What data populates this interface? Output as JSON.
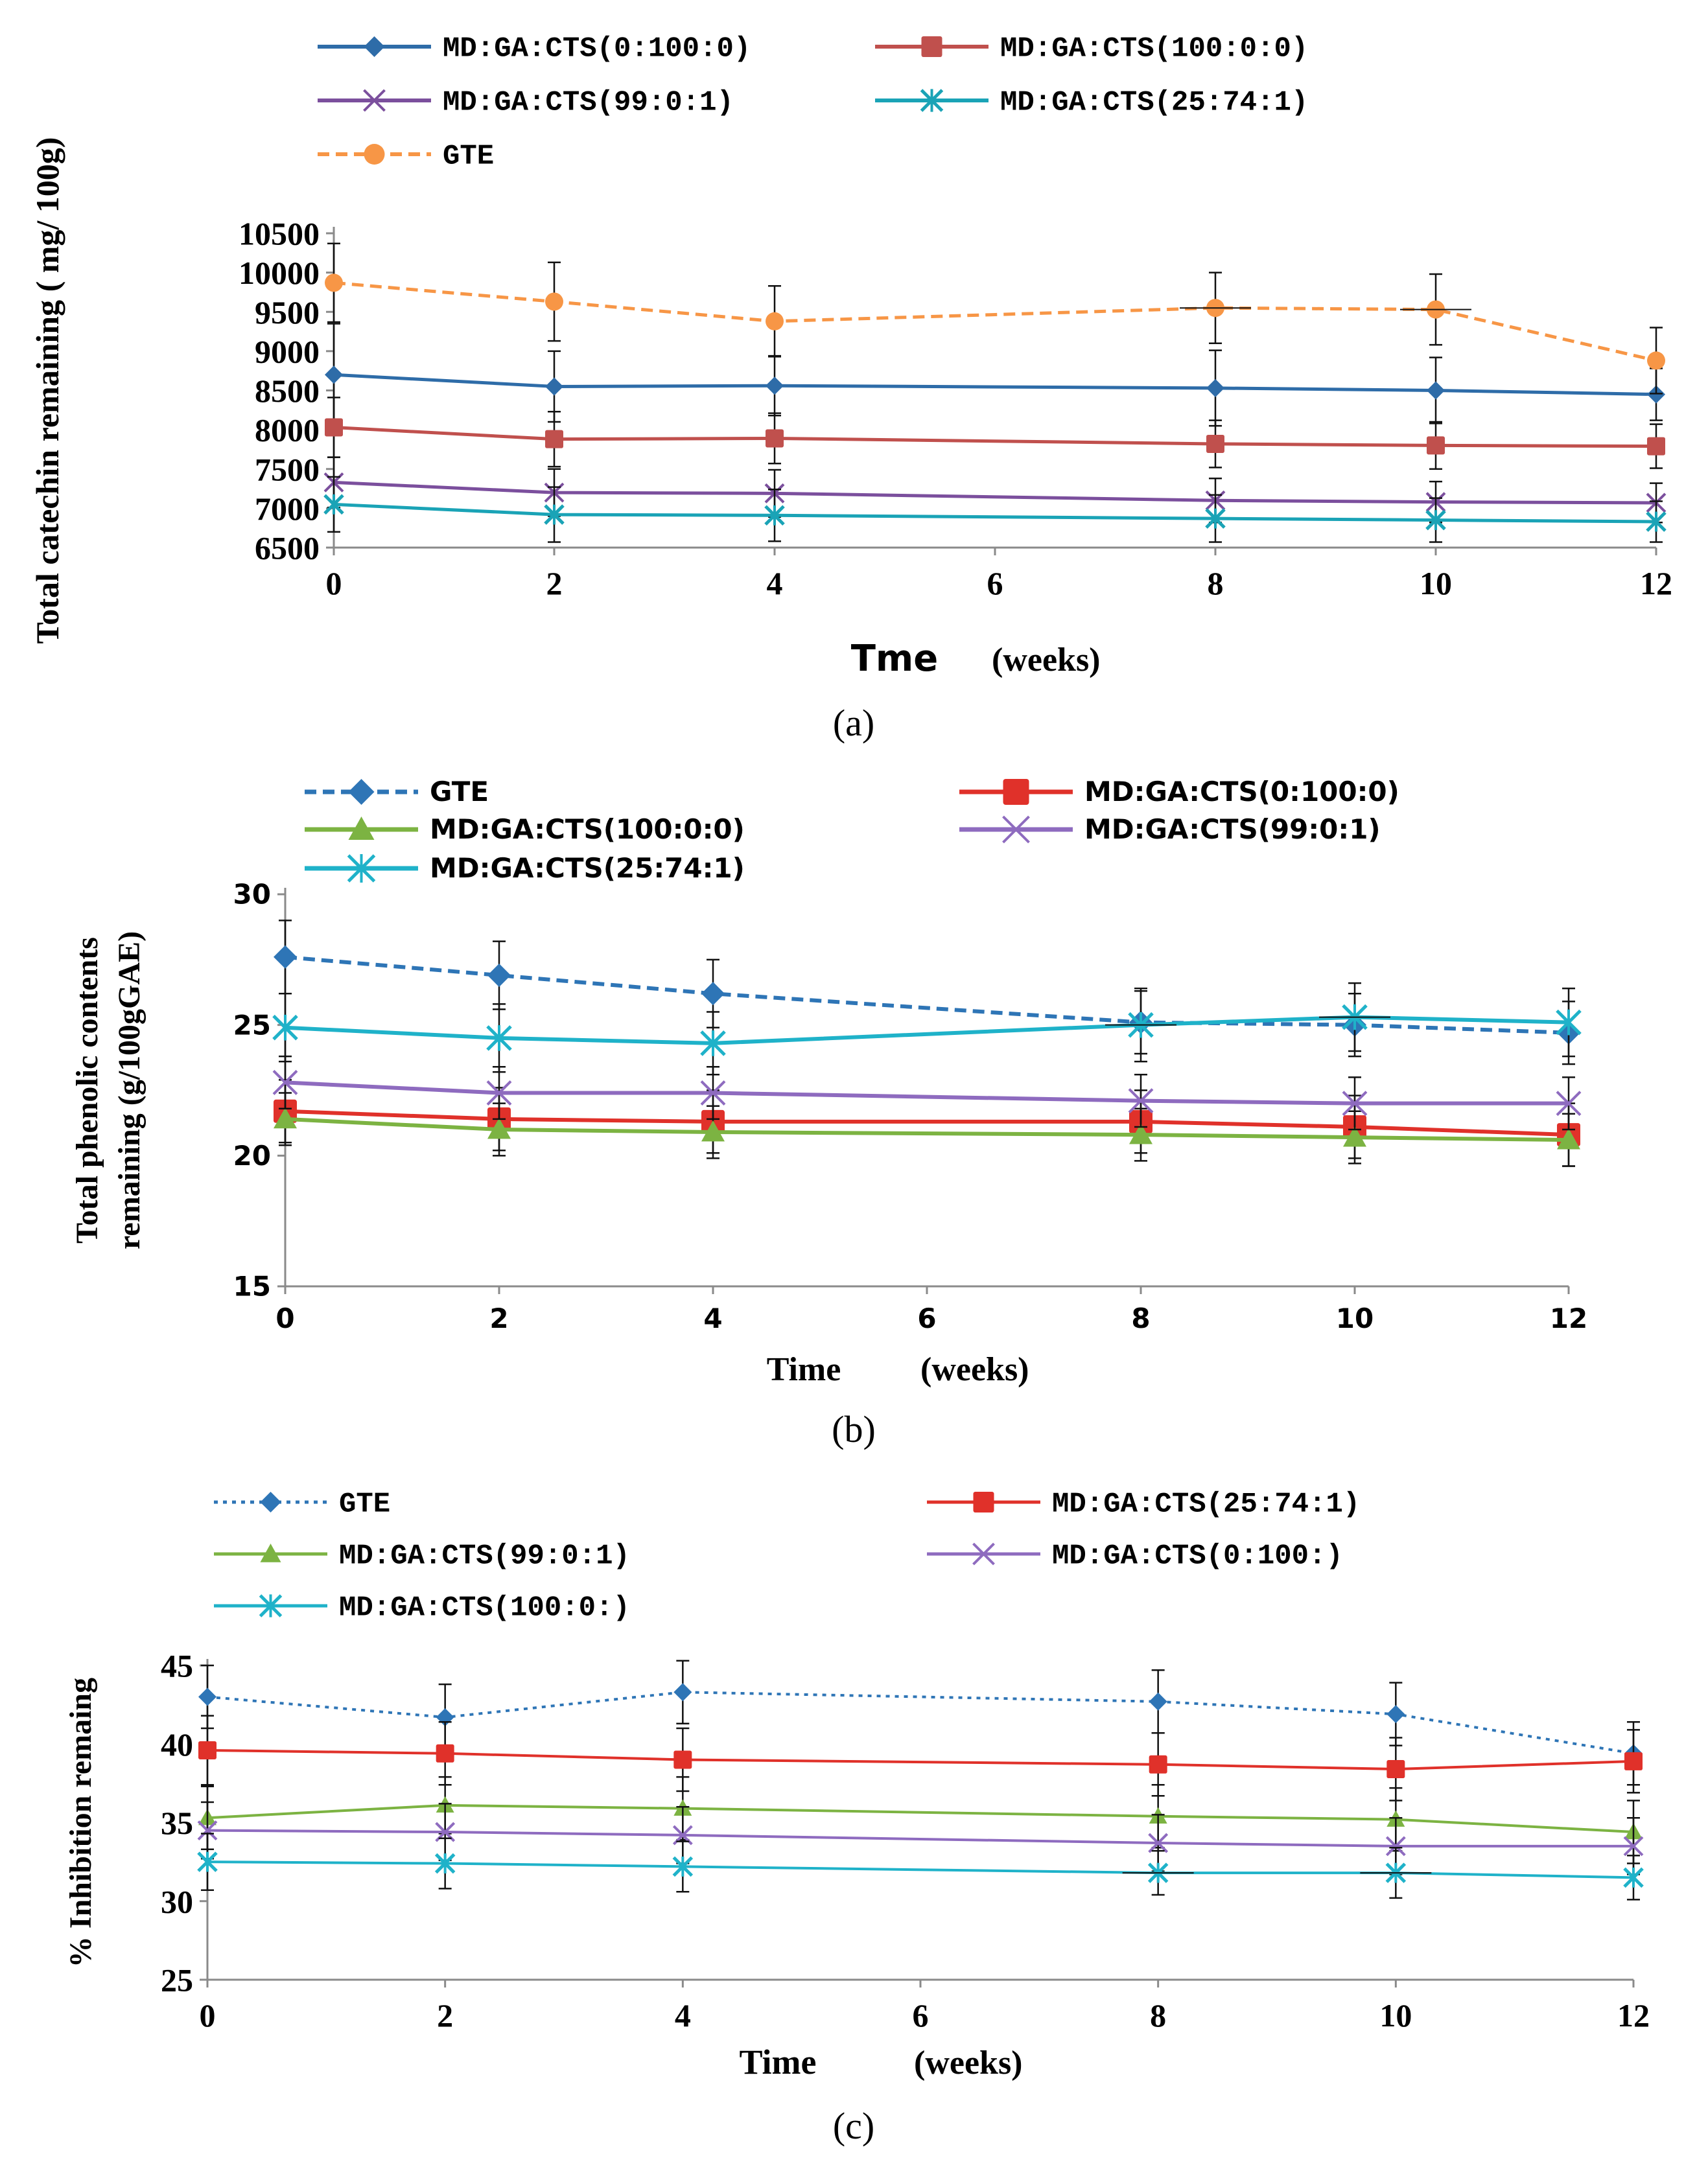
{
  "chart_data": [
    {
      "type": "line",
      "panel_label": "(a)",
      "ylabel": "Total catechin remaining ( mg/ 100g)",
      "xlabel_main": "Tme",
      "xlabel_unit": "(weeks)",
      "ylim": [
        6500,
        10500
      ],
      "y_ticks": [
        6500,
        7000,
        7500,
        8000,
        8500,
        9000,
        9500,
        10000,
        10500
      ],
      "xlim": [
        0,
        12
      ],
      "x_ticks": [
        0,
        2,
        4,
        6,
        8,
        10,
        12
      ],
      "x": [
        0,
        2,
        4,
        8,
        10,
        12
      ],
      "series": [
        {
          "name": "MD:GA:CTS(0:100:0)",
          "color": "#2e6ca8",
          "marker": "diamond",
          "dash": false,
          "values": [
            8700,
            8550,
            8560,
            8530,
            8500,
            8450
          ],
          "err": [
            650,
            450,
            380,
            480,
            420,
            330
          ]
        },
        {
          "name": "MD:GA:CTS(100:0:0)",
          "color": "#c0504d",
          "marker": "square",
          "dash": false,
          "values": [
            8030,
            7880,
            7890,
            7820,
            7800,
            7790
          ],
          "err": [
            380,
            350,
            320,
            300,
            300,
            280
          ]
        },
        {
          "name": "MD:GA:CTS(99:0:1)",
          "color": "#7b4f9d",
          "marker": "x",
          "dash": false,
          "values": [
            7330,
            7200,
            7190,
            7100,
            7080,
            7070
          ],
          "err": [
            320,
            300,
            300,
            280,
            260,
            250
          ]
        },
        {
          "name": "MD:GA:CTS(25:74:1)",
          "color": "#1aa3b6",
          "marker": "star",
          "dash": false,
          "values": [
            7050,
            6920,
            6910,
            6870,
            6850,
            6830
          ],
          "err": [
            350,
            350,
            330,
            300,
            280,
            260
          ]
        },
        {
          "name": "GTE",
          "color": "#f79646",
          "marker": "circle",
          "dash": true,
          "values": [
            9870,
            9630,
            9380,
            9550,
            9530,
            8880
          ],
          "err": [
            500,
            500,
            450,
            450,
            450,
            420
          ]
        }
      ]
    },
    {
      "type": "line",
      "panel_label": "(b)",
      "ylabel_line1": "Total phenolic contents",
      "ylabel_line2": "remaining (g/100gGAE)",
      "xlabel_main": "Time",
      "xlabel_unit": "(weeks)",
      "ylim": [
        15,
        30
      ],
      "y_ticks": [
        15,
        20,
        25,
        30
      ],
      "xlim": [
        0,
        12
      ],
      "x_ticks": [
        0,
        2,
        4,
        6,
        8,
        10,
        12
      ],
      "x": [
        0,
        2,
        4,
        8,
        10,
        12
      ],
      "series": [
        {
          "name": "GTE",
          "color": "#2e75b6",
          "marker": "diamond",
          "dash": true,
          "values": [
            27.6,
            26.9,
            26.2,
            25.1,
            25.0,
            24.7
          ],
          "err": [
            1.4,
            1.3,
            1.3,
            1.2,
            1.2,
            1.2
          ]
        },
        {
          "name": "MD:GA:CTS(0:100:0)",
          "color": "#e0312a",
          "marker": "square",
          "dash": false,
          "values": [
            21.7,
            21.4,
            21.3,
            21.3,
            21.1,
            20.8
          ],
          "err": [
            1.2,
            1.2,
            1.2,
            1.2,
            1.2,
            1.2
          ]
        },
        {
          "name": "MD:GA:CTS(100:0:0)",
          "color": "#7cb342",
          "marker": "triangle",
          "dash": false,
          "values": [
            21.4,
            21.0,
            20.9,
            20.8,
            20.7,
            20.6
          ],
          "err": [
            1.0,
            1.0,
            1.0,
            1.0,
            1.0,
            1.0
          ]
        },
        {
          "name": "MD:GA:CTS(99:0:1)",
          "color": "#8e6bbf",
          "marker": "x",
          "dash": false,
          "values": [
            22.8,
            22.4,
            22.4,
            22.1,
            22.0,
            22.0
          ],
          "err": [
            1.0,
            1.0,
            1.0,
            1.0,
            1.0,
            1.0
          ]
        },
        {
          "name": "MD:GA:CTS(25:74:1)",
          "color": "#1fb2c9",
          "marker": "star",
          "dash": false,
          "values": [
            24.9,
            24.5,
            24.3,
            25.0,
            25.3,
            25.1
          ],
          "err": [
            1.3,
            1.3,
            1.2,
            1.4,
            1.3,
            1.3
          ]
        }
      ]
    },
    {
      "type": "line",
      "panel_label": "(c)",
      "ylabel": "% Inhibition remaing",
      "xlabel_main": "Time",
      "xlabel_unit": "(weeks)",
      "ylim": [
        25,
        45
      ],
      "y_ticks": [
        25,
        30,
        35,
        40,
        45
      ],
      "xlim": [
        0,
        12
      ],
      "x_ticks": [
        0,
        2,
        4,
        6,
        8,
        10,
        12
      ],
      "x": [
        0,
        2,
        4,
        8,
        10,
        12
      ],
      "series": [
        {
          "name": "GTE",
          "color": "#2e75b6",
          "marker": "diamond",
          "dash": "dot",
          "values": [
            43.0,
            41.7,
            43.3,
            42.7,
            41.9,
            39.4
          ],
          "err": [
            2.0,
            2.1,
            2.0,
            2.0,
            2.0,
            2.0
          ]
        },
        {
          "name": "MD:GA:CTS(25:74:1)",
          "color": "#e0312a",
          "marker": "square",
          "dash": false,
          "values": [
            39.6,
            39.4,
            39.0,
            38.7,
            38.4,
            38.9
          ],
          "err": [
            2.2,
            2.0,
            2.0,
            2.0,
            2.0,
            2.0
          ]
        },
        {
          "name": "MD:GA:CTS(99:0:1)",
          "color": "#7cb342",
          "marker": "triangle",
          "dash": false,
          "values": [
            35.3,
            36.1,
            35.9,
            35.4,
            35.2,
            34.4
          ],
          "err": [
            2.0,
            1.8,
            2.0,
            2.0,
            2.0,
            2.0
          ]
        },
        {
          "name": "MD:GA:CTS(0:100:)",
          "color": "#8e6bbf",
          "marker": "x",
          "dash": false,
          "values": [
            34.5,
            34.4,
            34.2,
            33.7,
            33.5,
            33.5
          ],
          "err": [
            1.8,
            1.8,
            1.8,
            1.8,
            1.8,
            1.8
          ]
        },
        {
          "name": "MD:GA:CTS(100:0:)",
          "color": "#1fb2c9",
          "marker": "star",
          "dash": false,
          "values": [
            32.5,
            32.4,
            32.2,
            31.8,
            31.8,
            31.5
          ],
          "err": [
            1.8,
            1.6,
            1.6,
            1.4,
            1.6,
            1.4
          ]
        }
      ]
    }
  ]
}
